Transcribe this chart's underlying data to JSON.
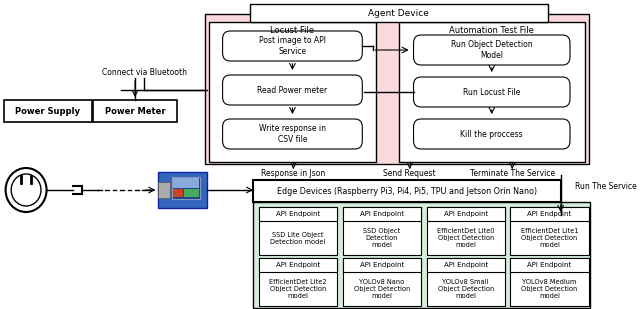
{
  "fig_w": 6.4,
  "fig_h": 3.09,
  "bg_color": "#ffffff",
  "pink_bg": "#fadadd",
  "green_bg": "#d5edda",
  "title": "Agent Device",
  "locust_label": "Locust File",
  "automation_label": "Automation Test File",
  "locust_steps": [
    "Post image to API\nService",
    "Read Power meter",
    "Write response in\nCSV file"
  ],
  "automation_steps": [
    "Run Object Detection\nModel",
    "Run Locust File",
    "Kill the proccess"
  ],
  "api_endpoints_row1": [
    "SSD Lite Object\nDetection model",
    "SSD Object\nDetection\nmodel",
    "EfficientDet Lite0\nObject Detection\nmodel",
    "EfficientDet Lite1\nObject Detection\nmodel"
  ],
  "api_endpoints_row2": [
    "EfficientDet Lite2\nObject Detection\nmodel",
    "YOLOv8 Nano\nObject Detection\nmodel",
    "YOLOv8 Small\nObject Detection\nmodel",
    "YOLOv8 Medium\nObject Detection\nmodel"
  ],
  "api_label": "API Endpoint",
  "power_supply_label": "Power Supply",
  "power_meter_label": "Power Meter",
  "connect_label": "Connect via Bluetooth",
  "response_label": "Response in Json",
  "send_label": "Send Request",
  "terminate_label": "Terminate The Service",
  "run_label": "Run The Service",
  "edge_label": "Edge Devices (Raspberry Pi3, Pi4, Pi5, TPU and Jetson Orin Nano)"
}
